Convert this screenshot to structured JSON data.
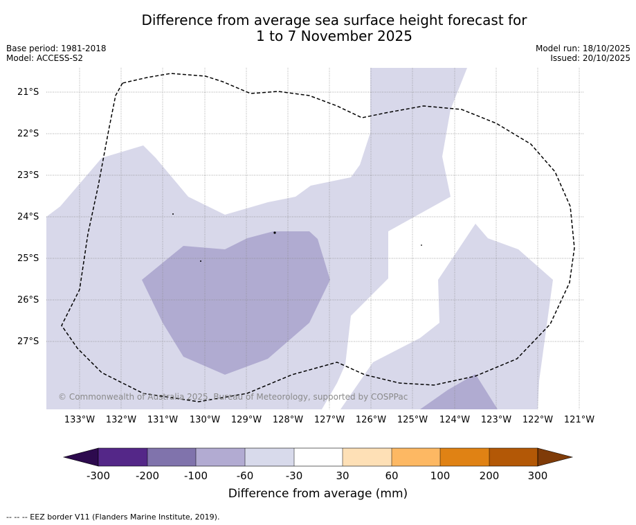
{
  "title_line1": "Difference from average sea surface height forecast for",
  "title_line2": "1 to 7 November 2025",
  "meta": {
    "base_period": "Base period: 1981-2018",
    "model": "Model: ACCESS-S2",
    "model_run": "Model run: 18/10/2025",
    "issued": "Issued: 20/10/2025"
  },
  "map": {
    "lat_labels": [
      "21°S",
      "22°S",
      "23°S",
      "24°S",
      "25°S",
      "26°S",
      "27°S"
    ],
    "lon_labels": [
      "133°W",
      "132°W",
      "131°W",
      "130°W",
      "129°W",
      "128°W",
      "127°W",
      "126°W",
      "125°W",
      "124°W",
      "123°W",
      "122°W",
      "121°W"
    ],
    "copyright": "© Commonwealth of Australia 2025, Bureau of Meteorology, supported by COSPPac",
    "eez_label": "EEZ border",
    "colors": {
      "band_-60_-30": "#d8d8ea",
      "band_-100_-60": "#b0abd1",
      "eez_border": "#000000"
    }
  },
  "colorbar": {
    "title": "Difference from average (mm)",
    "ticks": [
      "-300",
      "-200",
      "-100",
      "-60",
      "-30",
      "30",
      "60",
      "100",
      "200",
      "300"
    ],
    "low_extend_color": "#2d0a4e",
    "high_extend_color": "#7f3b08",
    "colors": [
      "#542788",
      "#8073ac",
      "#b2abd2",
      "#d8daeb",
      "#ffffff",
      "#fee0b6",
      "#fdb863",
      "#e08214",
      "#b35806"
    ]
  },
  "footnote": "--  --  -- EEZ border V11 (Flanders Marine Institute, 2019)."
}
